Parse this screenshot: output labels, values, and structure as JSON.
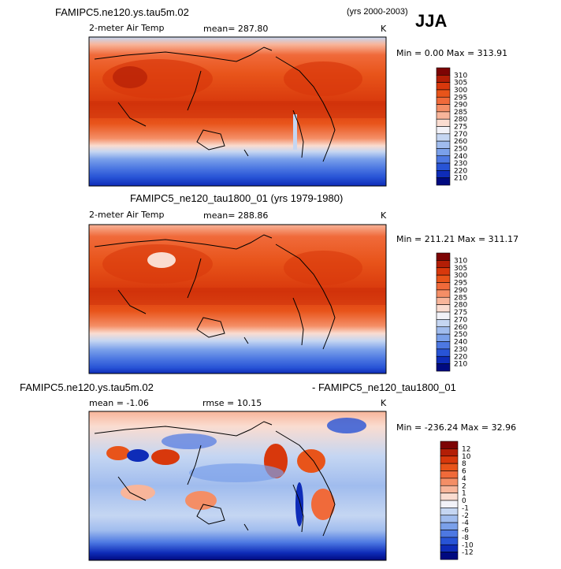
{
  "season": "JJA",
  "panels": [
    {
      "case_title": "FAMIPC5.ne120.ys.tau5m.02",
      "years": "(yrs 2000-2003)",
      "variable": "2-meter Air Temp",
      "stat_label": "mean= 287.80",
      "units": "K",
      "minmax": "Min =    0.00 Max = 313.91",
      "colorbar_labels": [
        "310",
        "305",
        "300",
        "295",
        "290",
        "285",
        "280",
        "275",
        "270",
        "260",
        "250",
        "240",
        "230",
        "220",
        "210"
      ],
      "colorbar_colors": [
        "#7d0404",
        "#b31e06",
        "#d8380c",
        "#e8541a",
        "#f06a3a",
        "#f48e66",
        "#f8b59a",
        "#fadcd0",
        "#f2f2f8",
        "#c5d6f2",
        "#a0bcee",
        "#7aa0ea",
        "#4d78e2",
        "#2854d6",
        "#0e2cb8",
        "#000a80"
      ]
    },
    {
      "case_title": "FAMIPC5_ne120_tau1800_01 (yrs 1979-1980)",
      "variable": "2-meter Air Temp",
      "stat_label": "mean= 288.86",
      "units": "K",
      "minmax": "Min = 211.21 Max = 311.17",
      "colorbar_labels": [
        "310",
        "305",
        "300",
        "295",
        "290",
        "285",
        "280",
        "275",
        "270",
        "260",
        "250",
        "240",
        "230",
        "220",
        "210"
      ],
      "colorbar_colors": [
        "#7d0404",
        "#b31e06",
        "#d8380c",
        "#e8541a",
        "#f06a3a",
        "#f48e66",
        "#f8b59a",
        "#fadcd0",
        "#f2f2f8",
        "#c5d6f2",
        "#a0bcee",
        "#7aa0ea",
        "#4d78e2",
        "#2854d6",
        "#0e2cb8",
        "#000a80"
      ]
    },
    {
      "case_title": "FAMIPC5.ne120.ys.tau5m.02",
      "diff_title": "- FAMIPC5_ne120_tau1800_01",
      "stat_label": "mean =   -1.06",
      "rmse_label": "rmse =   10.15",
      "units": "K",
      "minmax": "Min = -236.24 Max =  32.96",
      "colorbar_labels": [
        "12",
        "10",
        "8",
        "6",
        "4",
        "2",
        "1",
        "0",
        "-1",
        "-2",
        "-4",
        "-6",
        "-8",
        "-10",
        "-12"
      ],
      "colorbar_colors": [
        "#7d0404",
        "#b31e06",
        "#d8380c",
        "#e8541a",
        "#f06a3a",
        "#f48e66",
        "#f8b59a",
        "#fadcd0",
        "#f2f2f8",
        "#c5d6f2",
        "#a0bcee",
        "#7aa0ea",
        "#4d78e2",
        "#2854d6",
        "#0e2cb8",
        "#000a80"
      ]
    }
  ]
}
